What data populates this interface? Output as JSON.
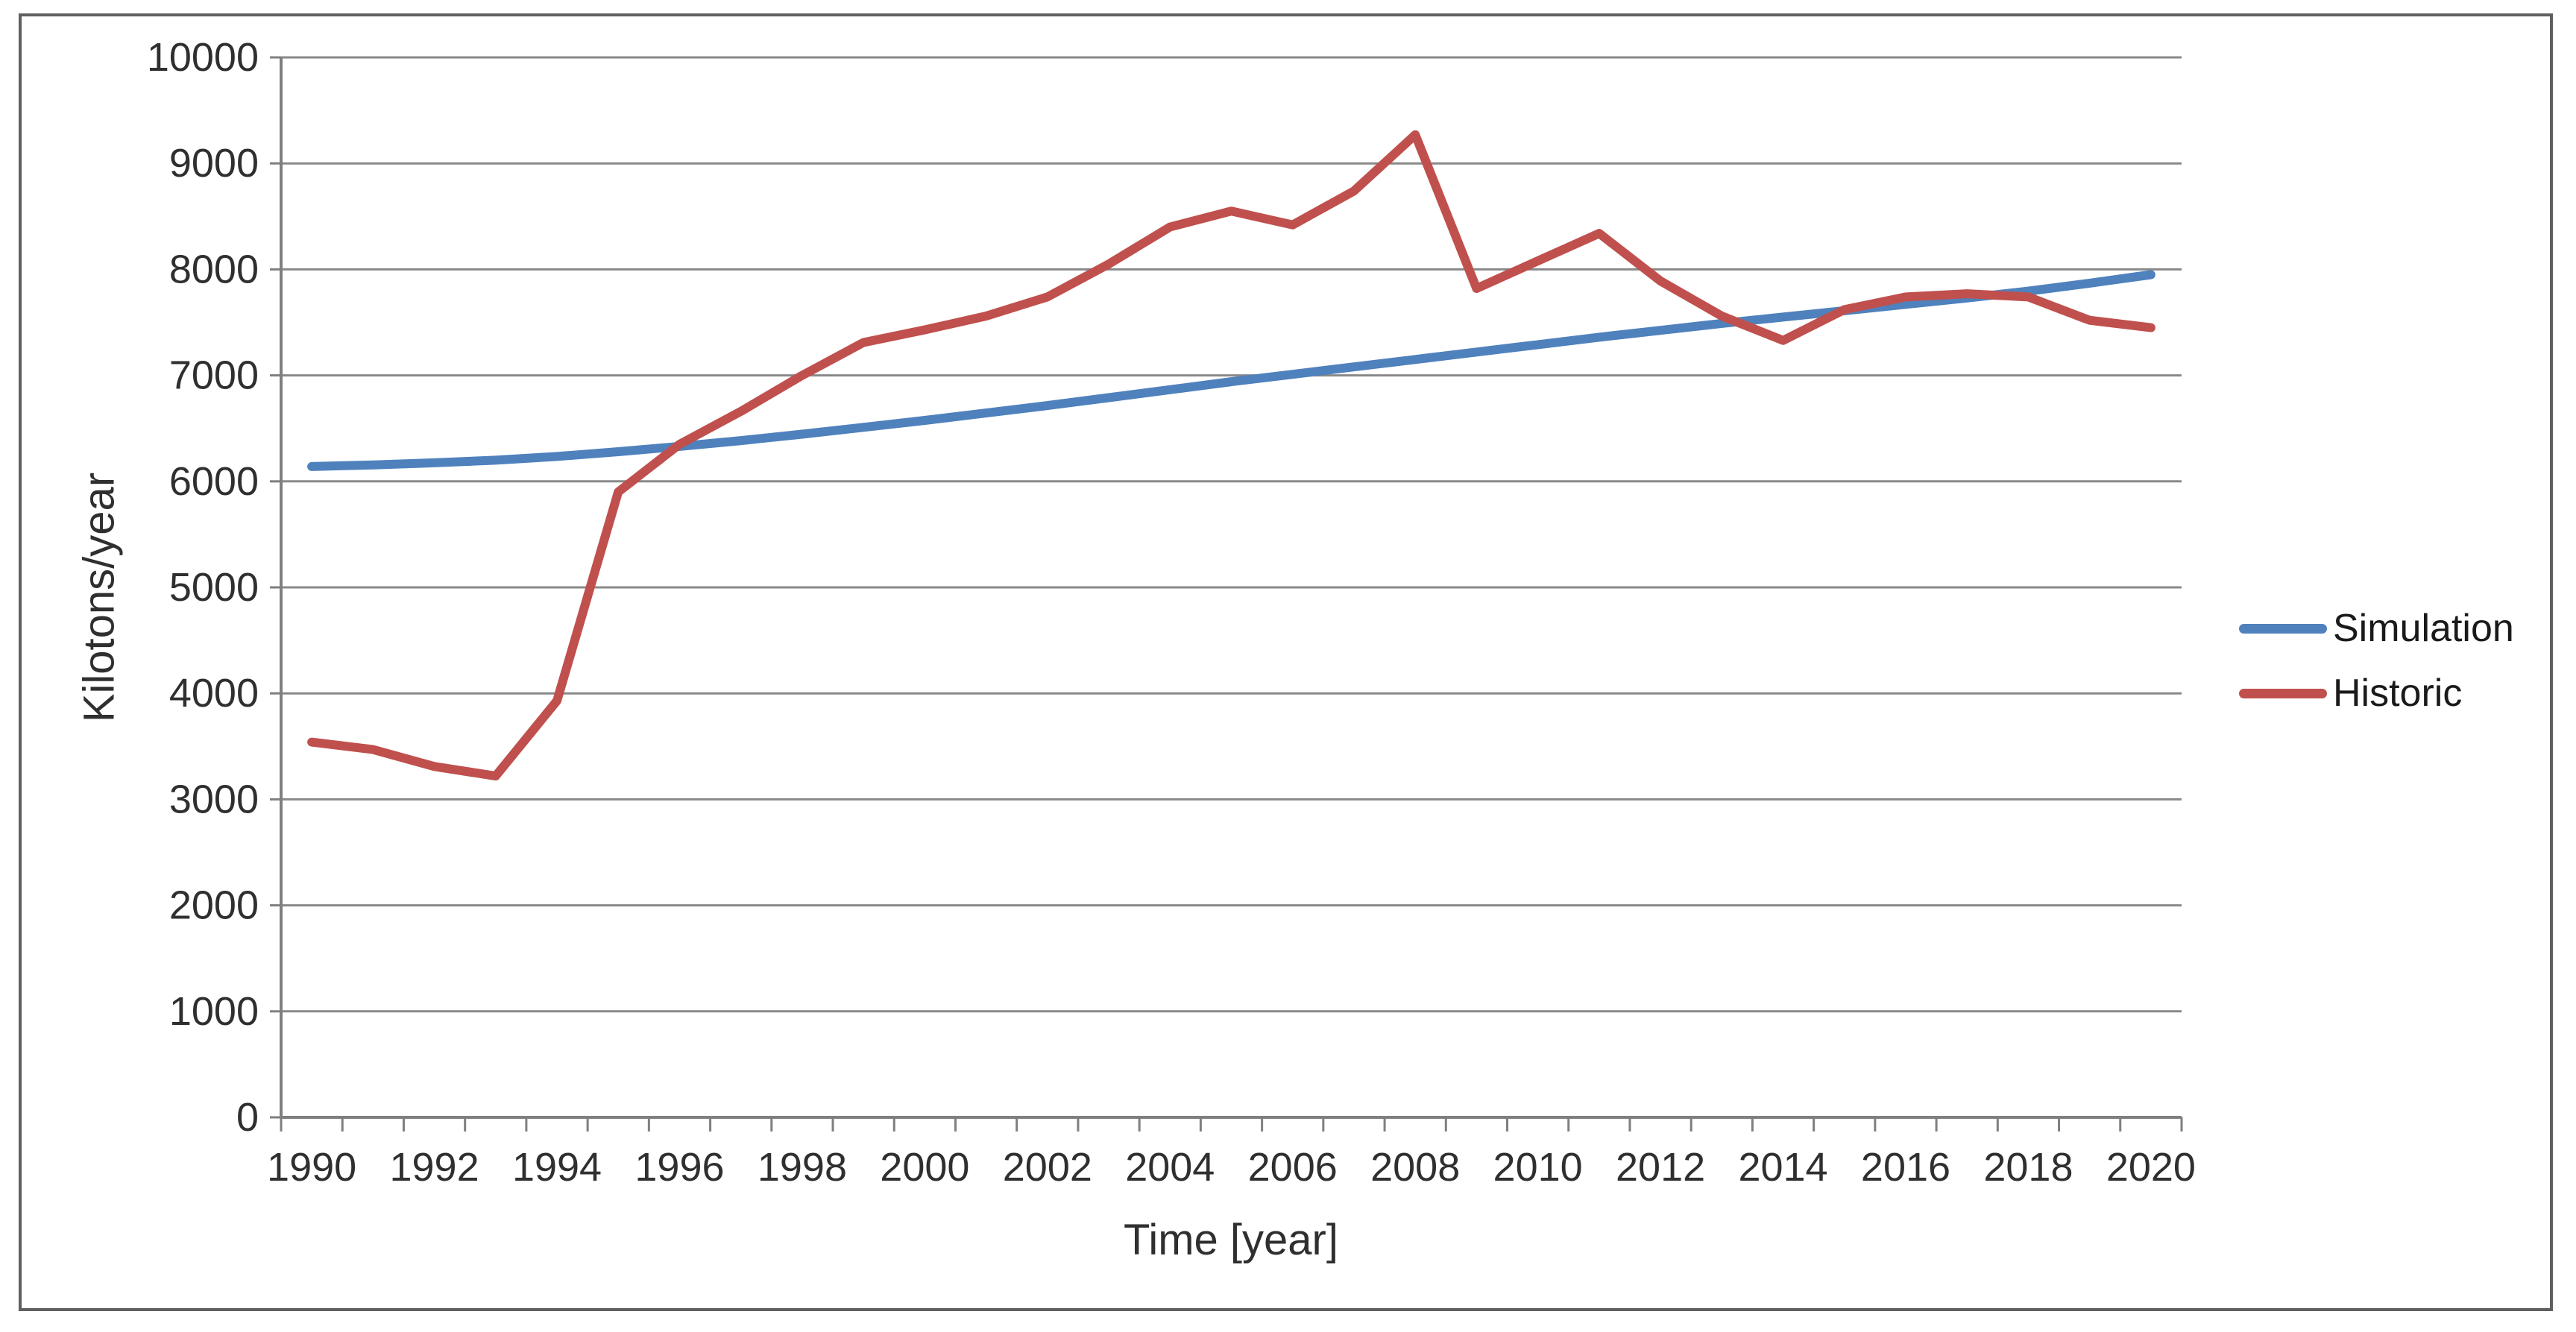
{
  "chart": {
    "background": "#ffffff",
    "frame_border_color": "#5f5f5f",
    "grid_color": "#898989",
    "axis_color": "#7f7f7f",
    "tick_color": "#7f7f7f",
    "label_color": "#2f2f2f",
    "accent_blue": "#4F81BD",
    "accent_red": "#C0504D"
  },
  "chart_data": {
    "type": "line",
    "title": "",
    "xlabel": "Time [year]",
    "ylabel": "Kilotons/year",
    "x": [
      1990,
      1991,
      1992,
      1993,
      1994,
      1995,
      1996,
      1997,
      1998,
      1999,
      2000,
      2001,
      2002,
      2003,
      2004,
      2005,
      2006,
      2007,
      2008,
      2009,
      2010,
      2011,
      2012,
      2013,
      2014,
      2015,
      2016,
      2017,
      2018,
      2019,
      2020
    ],
    "series": [
      {
        "name": "Simulation",
        "color": "#4F81BD",
        "values": [
          6140,
          6155,
          6175,
          6200,
          6235,
          6280,
          6330,
          6385,
          6445,
          6510,
          6575,
          6645,
          6715,
          6790,
          6865,
          6940,
          7010,
          7080,
          7150,
          7220,
          7290,
          7360,
          7425,
          7490,
          7550,
          7610,
          7670,
          7730,
          7795,
          7870,
          7950
        ]
      },
      {
        "name": "Historic",
        "color": "#C0504D",
        "values": [
          3540,
          3470,
          3310,
          3220,
          3930,
          5900,
          6350,
          6660,
          7000,
          7310,
          7430,
          7560,
          7740,
          8050,
          8400,
          8550,
          8420,
          8740,
          9270,
          7820,
          8080,
          8340,
          7890,
          7560,
          7330,
          7620,
          7740,
          7770,
          7740,
          7520,
          7450
        ]
      }
    ],
    "ylim": [
      0,
      10000
    ],
    "ytick_step": 1000,
    "xtick_label_every": 2,
    "grid": "horizontal",
    "legend_position": "right",
    "legend_labels": [
      "Simulation",
      "Historic"
    ]
  }
}
